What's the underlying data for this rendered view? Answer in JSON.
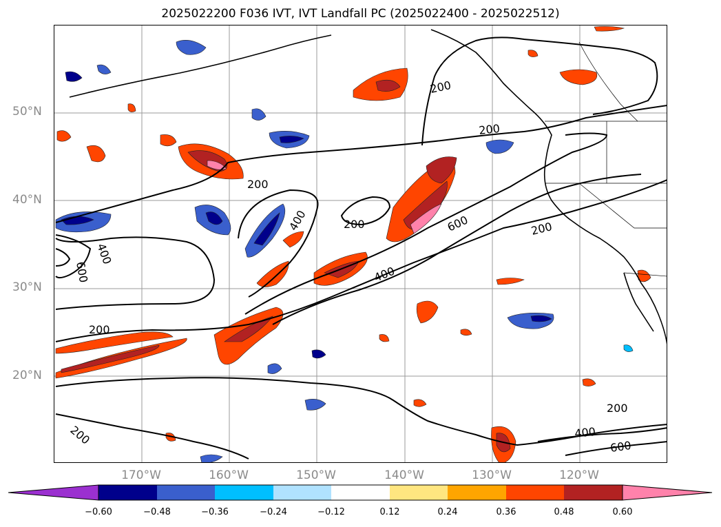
{
  "title": "2025022200 F036 IVT, IVT Landfall PC (2025022400 - 2025022512)",
  "lat_labels": [
    "50°N",
    "40°N",
    "30°N",
    "20°N"
  ],
  "lon_labels": [
    "170°W",
    "160°W",
    "150°W",
    "140°W",
    "130°W",
    "120°W"
  ],
  "colorbar": {
    "ticks": [
      "−0.60",
      "−0.48",
      "−0.36",
      "−0.24",
      "−0.12",
      "0.12",
      "0.24",
      "0.36",
      "0.48",
      "0.60"
    ],
    "colors": [
      "#9b30d0",
      "#00008b",
      "#3a5fcd",
      "#00bfff",
      "#b0e2ff",
      "#ffffff",
      "#ffe680",
      "#ffa500",
      "#ff4500",
      "#b22222",
      "#ff82ab"
    ]
  },
  "contour_labels": [
    "200",
    "200",
    "200",
    "200",
    "200",
    "200",
    "400",
    "400",
    "600",
    "600",
    "400",
    "200",
    "200",
    "400",
    "600",
    "400",
    "600"
  ]
}
